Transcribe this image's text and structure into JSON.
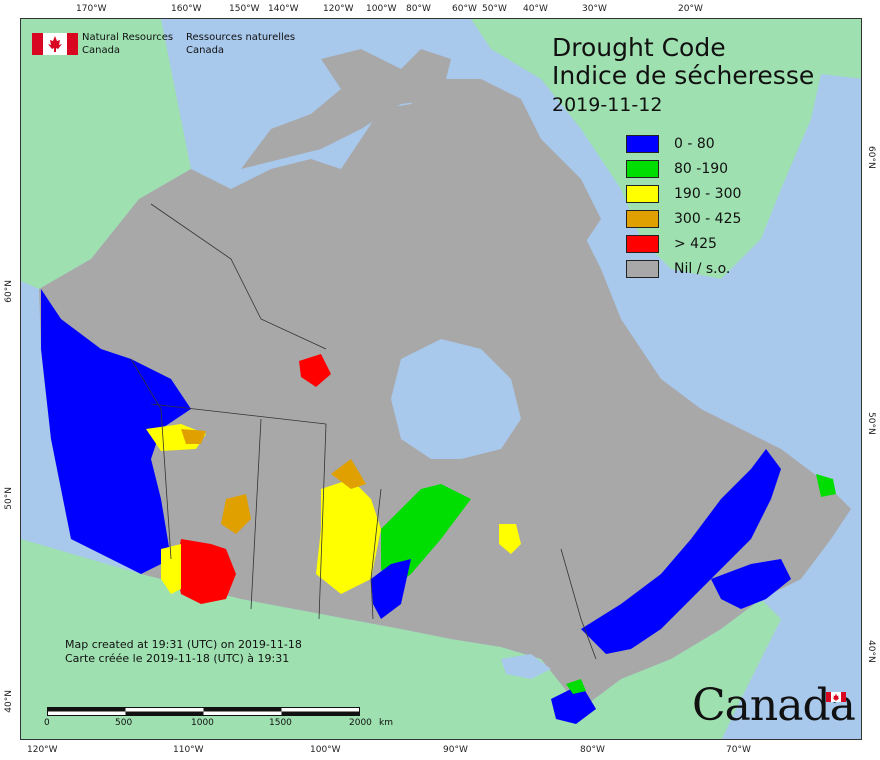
{
  "title": {
    "line1": "Drought Code",
    "line2": "Indice de sécheresse",
    "date": "2019-11-12"
  },
  "legend": [
    {
      "label": "0 - 80",
      "color": "#0000ff"
    },
    {
      "label": "80 -190",
      "color": "#00dd00"
    },
    {
      "label": "190 - 300",
      "color": "#ffff00"
    },
    {
      "label": "300 - 425",
      "color": "#e0a000"
    },
    {
      "label": "> 425",
      "color": "#ff0000"
    },
    {
      "label": "Nil / s.o.",
      "color": "#a8a8a8"
    }
  ],
  "agency": {
    "en_line1": "Natural Resources",
    "en_line2": "Canada",
    "fr_line1": "Ressources naturelles",
    "fr_line2": "Canada"
  },
  "credits": {
    "line1": "Map created at 19:31 (UTC) on 2019-11-18",
    "line2": "Carte créée le 2019-11-18 (UTC) à 19:31"
  },
  "scale": {
    "labels": [
      "0",
      "500",
      "1000",
      "1500",
      "2000"
    ],
    "unit": "km"
  },
  "wordmark": "Canada",
  "axes": {
    "top": [
      "170°W",
      "160°W",
      "150°W",
      "140°W",
      "120°W",
      "100°W",
      "80°W",
      "60°W",
      "50°W",
      "40°W",
      "30°W",
      "20°W"
    ],
    "bottom": [
      "120°W",
      "110°W",
      "100°W",
      "90°W",
      "80°W",
      "70°W"
    ],
    "left": [
      "60°N",
      "50°N",
      "40°N"
    ],
    "right": [
      "60°N",
      "50°N",
      "40°N"
    ]
  },
  "colors": {
    "ocean": "#a8c8ec",
    "foreign_land": "#9ee0b0",
    "nil": "#a8a8a8",
    "boundary": "#333333"
  }
}
